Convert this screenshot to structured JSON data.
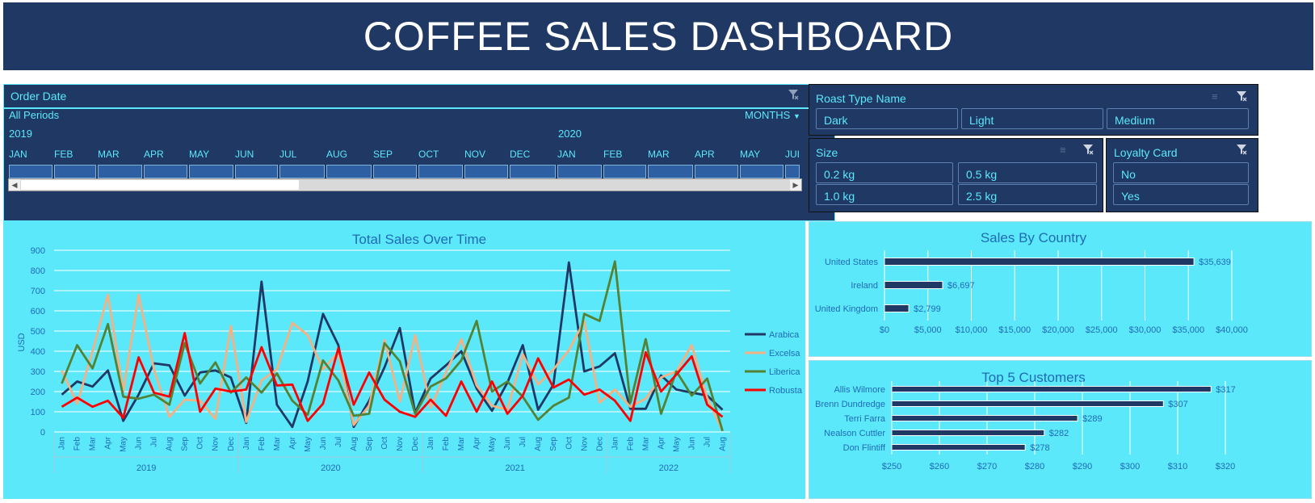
{
  "title": "COFFEE SALES DASHBOARD",
  "timeline": {
    "label": "Order Date",
    "periods_label": "All Periods",
    "unit": "MONTHS",
    "years": [
      "2019",
      "2020"
    ],
    "months": [
      "JAN",
      "FEB",
      "MAR",
      "APR",
      "MAY",
      "JUN",
      "JUL",
      "AUG",
      "SEP",
      "OCT",
      "NOV",
      "DEC",
      "JAN",
      "FEB",
      "MAR",
      "APR",
      "MAY",
      "JUI"
    ]
  },
  "roast": {
    "label": "Roast Type Name",
    "options": [
      "Dark",
      "Light",
      "Medium"
    ]
  },
  "size": {
    "label": "Size",
    "options": [
      "0.2 kg",
      "0.5 kg",
      "1.0 kg",
      "2.5 kg"
    ]
  },
  "loyalty": {
    "label": "Loyalty Card",
    "options": [
      "No",
      "Yes"
    ]
  },
  "colors": {
    "navy": "#1f3864",
    "cyan": "#5ce8fb",
    "arabica": "#1f3864",
    "excelsa": "#f4b183",
    "liberica": "#548235",
    "robusta": "#ff0000"
  },
  "chart_data": [
    {
      "type": "line",
      "title": "Total Sales Over Time",
      "ylabel": "USD",
      "ylim": [
        0,
        900
      ],
      "yticks": [
        0,
        100,
        200,
        300,
        400,
        500,
        600,
        700,
        800,
        900
      ],
      "x": [
        "Jan",
        "Feb",
        "Mar",
        "Apr",
        "May",
        "Jun",
        "Jul",
        "Aug",
        "Sep",
        "Oct",
        "Nov",
        "Dec",
        "Jan",
        "Feb",
        "Mar",
        "Apr",
        "May",
        "Jun",
        "Jul",
        "Aug",
        "Sep",
        "Oct",
        "Nov",
        "Dec",
        "Jan",
        "Feb",
        "Mar",
        "Apr",
        "May",
        "Jun",
        "Jul",
        "Aug",
        "Sep",
        "Oct",
        "Nov",
        "Dec",
        "Jan",
        "Feb",
        "Mar",
        "Apr",
        "May",
        "Jun",
        "Jul",
        "Aug"
      ],
      "years": [
        "2019",
        "2020",
        "2021",
        "2022"
      ],
      "grid": true,
      "legend": "right",
      "series": [
        {
          "name": "Arabica",
          "values": [
            185,
            250,
            225,
            305,
            55,
            185,
            340,
            330,
            180,
            295,
            305,
            270,
            45,
            745,
            135,
            25,
            250,
            585,
            430,
            25,
            155,
            320,
            515,
            95,
            265,
            330,
            400,
            215,
            105,
            245,
            430,
            110,
            235,
            840,
            300,
            325,
            390,
            115,
            115,
            280,
            210,
            195,
            180,
            110
          ]
        },
        {
          "name": "Excelsa",
          "values": [
            305,
            140,
            400,
            680,
            200,
            680,
            310,
            75,
            160,
            155,
            65,
            525,
            50,
            255,
            310,
            540,
            480,
            310,
            395,
            35,
            130,
            455,
            150,
            480,
            120,
            295,
            460,
            230,
            130,
            110,
            385,
            235,
            310,
            405,
            550,
            145,
            210,
            125,
            165,
            270,
            300,
            430,
            170,
            5
          ]
        },
        {
          "name": "Liberica",
          "values": [
            240,
            430,
            315,
            535,
            175,
            165,
            185,
            135,
            440,
            240,
            345,
            195,
            270,
            195,
            290,
            155,
            85,
            355,
            255,
            80,
            90,
            440,
            350,
            90,
            225,
            265,
            355,
            550,
            200,
            250,
            175,
            60,
            130,
            170,
            585,
            550,
            845,
            145,
            460,
            90,
            300,
            180,
            265,
            5
          ]
        },
        {
          "name": "Robusta",
          "values": [
            125,
            170,
            125,
            155,
            70,
            370,
            195,
            175,
            490,
            100,
            215,
            200,
            210,
            420,
            230,
            235,
            55,
            140,
            415,
            135,
            295,
            160,
            100,
            75,
            160,
            80,
            250,
            100,
            250,
            90,
            180,
            365,
            220,
            260,
            185,
            210,
            155,
            55,
            395,
            200,
            285,
            375,
            135,
            75
          ]
        }
      ]
    },
    {
      "type": "bar",
      "title": "Sales By Country",
      "categories": [
        "United States",
        "Ireland",
        "United Kingdom"
      ],
      "values": [
        35639,
        6697,
        2799
      ],
      "labels": [
        "$35,639",
        "$6,697",
        "$2,799"
      ],
      "xlim": [
        0,
        40000
      ],
      "xticks": [
        "$0",
        "$5,000",
        "$10,000",
        "$15,000",
        "$20,000",
        "$25,000",
        "$30,000",
        "$35,000",
        "$40,000"
      ]
    },
    {
      "type": "bar",
      "title": "Top 5 Customers",
      "categories": [
        "Allis Wilmore",
        "Brenn Dundredge",
        "Terri Farra",
        "Nealson Cuttler",
        "Don Flintiff"
      ],
      "values": [
        317,
        307,
        289,
        282,
        278
      ],
      "labels": [
        "$317",
        "$307",
        "$289",
        "$282",
        "$278"
      ],
      "xlim": [
        250,
        320
      ],
      "xticks": [
        "$250",
        "$260",
        "$270",
        "$280",
        "$290",
        "$300",
        "$310",
        "$320"
      ]
    }
  ]
}
